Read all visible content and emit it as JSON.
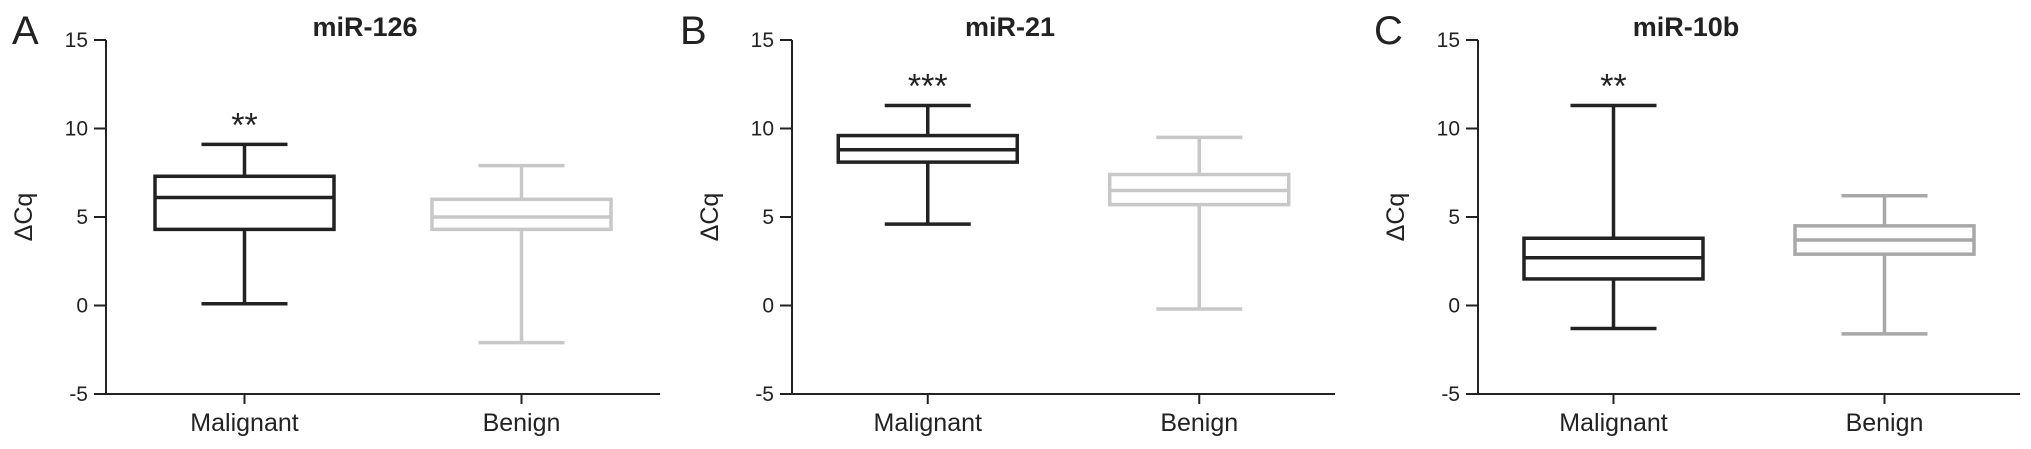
{
  "chart_data": [
    {
      "type": "box",
      "panel": "A",
      "title": "miR-126",
      "ylabel": "ΔCq",
      "ylim": [
        -5,
        15
      ],
      "yticks": [
        -5,
        0,
        5,
        10,
        15
      ],
      "categories": [
        "Malignant",
        "Benign"
      ],
      "colors": [
        "#222222",
        "#c8c8c8"
      ],
      "boxes": [
        {
          "min": 0.1,
          "q1": 4.3,
          "median": 6.1,
          "q3": 7.3,
          "max": 9.1
        },
        {
          "min": -2.1,
          "q1": 4.3,
          "median": 5.0,
          "q3": 6.0,
          "max": 7.9
        }
      ],
      "significance": [
        "**",
        ""
      ]
    },
    {
      "type": "box",
      "panel": "B",
      "title": "miR-21",
      "ylabel": "ΔCq",
      "ylim": [
        -5,
        15
      ],
      "yticks": [
        -5,
        0,
        5,
        10,
        15
      ],
      "categories": [
        "Malignant",
        "Benign"
      ],
      "colors": [
        "#222222",
        "#c8c8c8"
      ],
      "boxes": [
        {
          "min": 4.6,
          "q1": 8.1,
          "median": 8.8,
          "q3": 9.6,
          "max": 11.3
        },
        {
          "min": -0.2,
          "q1": 5.7,
          "median": 6.5,
          "q3": 7.4,
          "max": 9.5
        }
      ],
      "significance": [
        "***",
        ""
      ]
    },
    {
      "type": "box",
      "panel": "C",
      "title": "miR-10b",
      "ylabel": "ΔCq",
      "ylim": [
        -5,
        15
      ],
      "yticks": [
        -5,
        0,
        5,
        10,
        15
      ],
      "categories": [
        "Malignant",
        "Benign"
      ],
      "colors": [
        "#222222",
        "#a8a8a8"
      ],
      "boxes": [
        {
          "min": -1.3,
          "q1": 1.5,
          "median": 2.7,
          "q3": 3.8,
          "max": 11.3
        },
        {
          "min": -1.6,
          "q1": 2.9,
          "median": 3.7,
          "q3": 4.5,
          "max": 6.2
        }
      ],
      "significance": [
        "**",
        ""
      ]
    }
  ]
}
